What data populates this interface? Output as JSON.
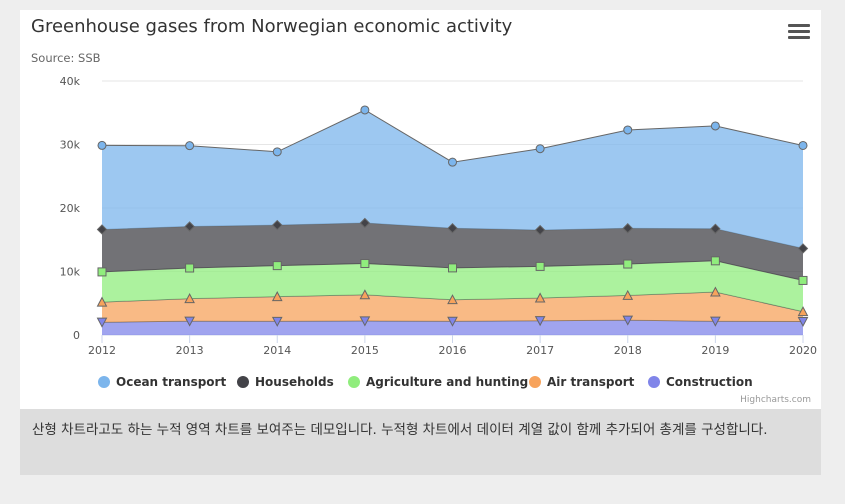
{
  "chart": {
    "title": "Greenhouse gases from Norwegian economic activity",
    "subtitle": "Source: SSB",
    "credits": "Highcharts.com",
    "menu_icon": "hamburger-icon"
  },
  "caption": "산형 차트라고도 하는 누적 영역 차트를 보여주는 데모입니다. 누적형 차트에서 데이터 계열 값이 함께 추가되어 총계를 구성합니다.",
  "chart_data": {
    "type": "area",
    "stacking": "normal",
    "title": "Greenhouse gases from Norwegian economic activity",
    "subtitle": "Source: SSB",
    "x": [
      "2012",
      "2013",
      "2014",
      "2015",
      "2016",
      "2017",
      "2018",
      "2019",
      "2020"
    ],
    "ylim": [
      0,
      40000
    ],
    "y_ticks": [
      "0",
      "10k",
      "20k",
      "30k",
      "40k"
    ],
    "grid": true,
    "legend_position": "bottom",
    "series": [
      {
        "name": "Ocean transport",
        "color": "#7cb5ec",
        "marker": "circle",
        "values": [
          13234,
          12729,
          11533,
          17798,
          10398,
          12811,
          15483,
          16196,
          16214
        ]
      },
      {
        "name": "Households",
        "color": "#434348",
        "marker": "diamond",
        "values": [
          6685,
          6535,
          6389,
          6384,
          6251,
          5725,
          5631,
          5047,
          5039
        ]
      },
      {
        "name": "Agriculture and hunting",
        "color": "#90ed7d",
        "marker": "square",
        "values": [
          4752,
          4820,
          4877,
          4925,
          5006,
          4976,
          4946,
          4911,
          4913
        ]
      },
      {
        "name": "Air transport",
        "color": "#f7a35c",
        "marker": "triangle",
        "values": [
          3164,
          3541,
          3898,
          4115,
          3388,
          3569,
          3887,
          4593,
          1550
        ]
      },
      {
        "name": "Construction",
        "color": "#8085e9",
        "marker": "triangle-down",
        "values": [
          2019,
          2189,
          2150,
          2217,
          2175,
          2257,
          2344,
          2176,
          2128
        ]
      }
    ]
  }
}
